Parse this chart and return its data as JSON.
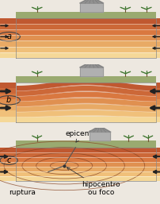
{
  "bg_color": "#ede8e0",
  "layer_colors": [
    "#c05830",
    "#cc6838",
    "#d97840",
    "#e09050",
    "#e8aa65",
    "#f0c07a",
    "#f5d898"
  ],
  "surface_color_top": "#9aaa70",
  "surface_color_bot": "#7a9050",
  "arrow_color": "#222222",
  "label_a": "a",
  "label_b": "b",
  "label_c": "c",
  "text_epicentro": "epicentro",
  "text_ruptura": "ruptura",
  "text_hipocentro": "hipocentro\nou foco",
  "font_size_small": 6.5,
  "wave_ellipse_color": "#804020",
  "line_sep_color": "#00000022"
}
